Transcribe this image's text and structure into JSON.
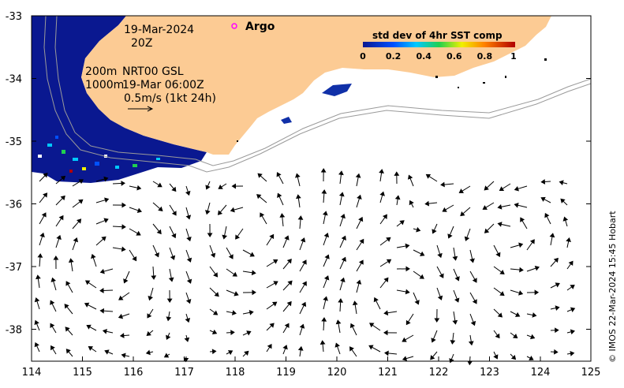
{
  "annotations": {
    "date": "19-Mar-2024",
    "hour": "20Z",
    "iso_200": "200m",
    "product": "NRT00 GSL",
    "iso_1000": "1000m",
    "ssh_time": "19-Mar 06:00Z",
    "arrow_scale": "0.5m/s (1kt 24h)",
    "argo_label": "Argo"
  },
  "colorbar": {
    "title": "std dev of 4hr SST comp",
    "ticks": [
      "0",
      "0.2",
      "0.4",
      "0.6",
      "0.8",
      "1"
    ],
    "range": [
      0,
      1
    ]
  },
  "axes": {
    "lon_ticks": [
      "114",
      "115",
      "116",
      "117",
      "118",
      "119",
      "120",
      "121",
      "122",
      "123",
      "124",
      "125"
    ],
    "lat_ticks": [
      "-33",
      "-34",
      "-35",
      "-36",
      "-37",
      "-38"
    ],
    "lon_range": [
      114,
      125
    ],
    "lat_range": [
      -38.55,
      -33
    ]
  },
  "credit": "© IMOS 22-Mar-2024 15:45 Hobart",
  "colors": {
    "land": "#fccb94",
    "sst_low": "#0a1890",
    "sst_high": "#b00000",
    "argo": "#ff00ff",
    "isobath": "#9a9a9a"
  }
}
